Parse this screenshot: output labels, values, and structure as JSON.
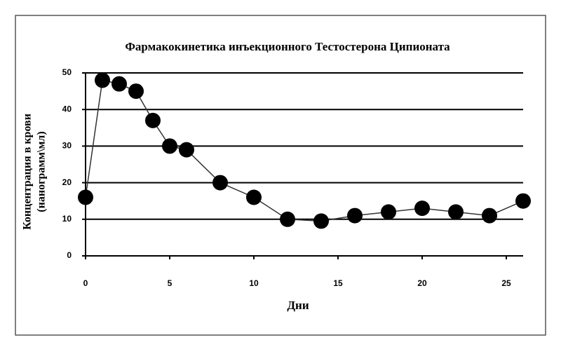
{
  "chart_data": {
    "type": "line",
    "title": "Фармакокинетика инъекционного Тестостерона Ципионата",
    "y_label": [
      "Концентрация в крови",
      "(нанограмм\\мл)"
    ],
    "x_label": "Дни",
    "x": [
      0,
      1,
      2,
      3,
      4,
      5,
      6,
      8,
      10,
      12,
      14,
      16,
      18,
      20,
      22,
      24,
      26
    ],
    "series": [
      {
        "color": "#000000",
        "values": [
          16,
          48,
          47,
          45,
          37,
          30,
          29,
          20,
          16,
          10,
          9.5,
          11,
          12,
          13,
          12,
          11,
          15
        ]
      }
    ],
    "xlim": [
      0,
      26
    ],
    "xticks": [
      0,
      5,
      10,
      15,
      20,
      25
    ],
    "ylim": [
      0,
      50
    ],
    "yticks": [
      0,
      10,
      20,
      30,
      40,
      50
    ],
    "grid": true
  }
}
